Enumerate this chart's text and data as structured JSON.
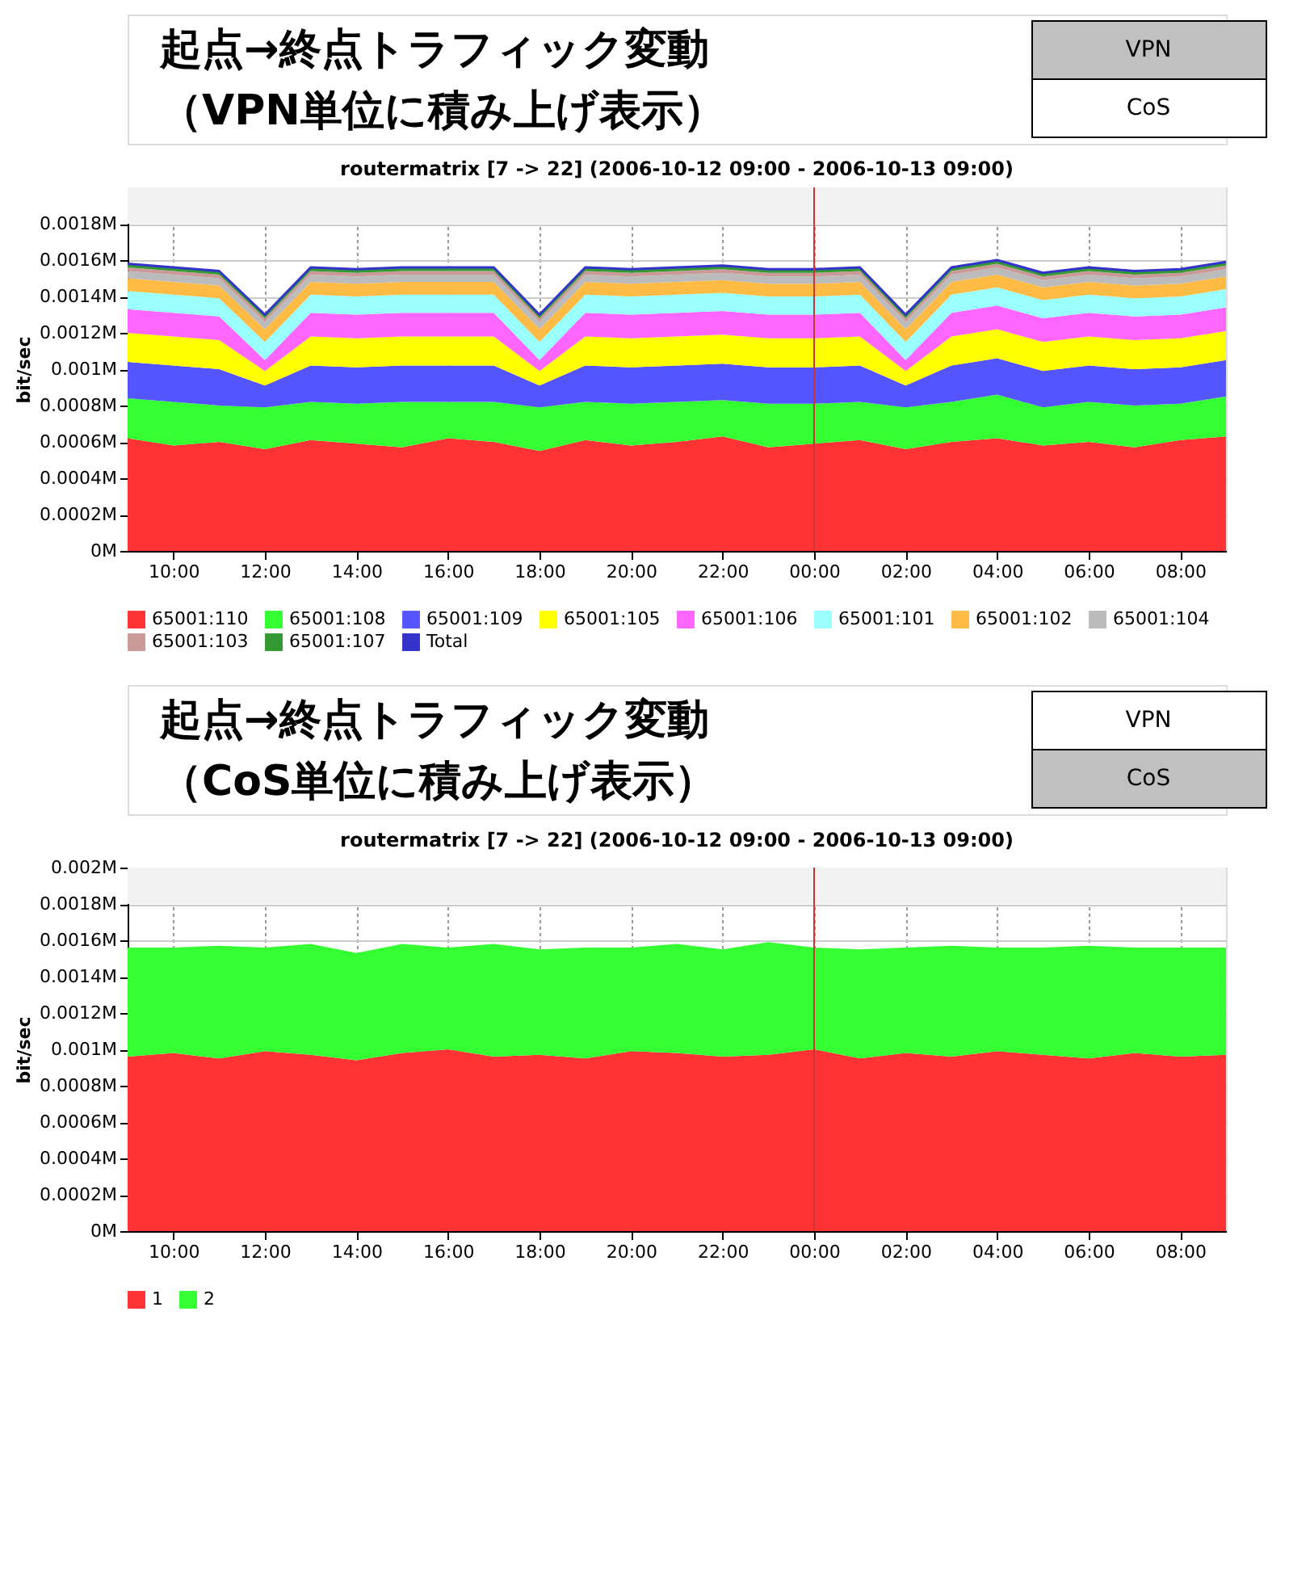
{
  "chart_data": [
    {
      "type": "area",
      "stacked": true,
      "title": "routermatrix [7 -> 22] (2006-10-12 09:00 - 2006-10-13 09:00)",
      "ylabel": "bit/sec",
      "annotations": [
        "起点→終点トラフィック変動",
        "（VPN単位に積み上げ表示）",
        "VPN",
        "CoS"
      ],
      "x": [
        "2006-10-12T09:00",
        "2006-10-12T10:00",
        "2006-10-12T11:00",
        "2006-10-12T12:00",
        "2006-10-12T13:00",
        "2006-10-12T14:00",
        "2006-10-12T15:00",
        "2006-10-12T16:00",
        "2006-10-12T17:00",
        "2006-10-12T18:00",
        "2006-10-12T19:00",
        "2006-10-12T20:00",
        "2006-10-12T21:00",
        "2006-10-12T22:00",
        "2006-10-12T23:00",
        "2006-10-13T00:00",
        "2006-10-13T01:00",
        "2006-10-13T02:00",
        "2006-10-13T03:00",
        "2006-10-13T04:00",
        "2006-10-13T05:00",
        "2006-10-13T06:00",
        "2006-10-13T07:00",
        "2006-10-13T08:00",
        "2006-10-13T09:00"
      ],
      "series": [
        {
          "name": "65001:110",
          "color": "#ff3333",
          "values": [
            0.00062,
            0.00058,
            0.0006,
            0.00056,
            0.00061,
            0.00059,
            0.00057,
            0.00062,
            0.0006,
            0.00055,
            0.00061,
            0.00058,
            0.0006,
            0.00063,
            0.00057,
            0.00059,
            0.00061,
            0.00056,
            0.0006,
            0.00062,
            0.00058,
            0.0006,
            0.00057,
            0.00061,
            0.00063
          ]
        },
        {
          "name": "65001:108",
          "color": "#33ff33",
          "values": [
            0.00022,
            0.00024,
            0.0002,
            0.00023,
            0.00021,
            0.00022,
            0.00025,
            0.0002,
            0.00022,
            0.00024,
            0.00021,
            0.00023,
            0.00022,
            0.0002,
            0.00024,
            0.00022,
            0.00021,
            0.00023,
            0.00022,
            0.00024,
            0.00021,
            0.00022,
            0.00023,
            0.0002,
            0.00022
          ]
        },
        {
          "name": "65001:109",
          "color": "#5555ff",
          "values": [
            0.0002,
            0.0002,
            0.0002,
            0.00012,
            0.0002,
            0.0002,
            0.0002,
            0.0002,
            0.0002,
            0.00012,
            0.0002,
            0.0002,
            0.0002,
            0.0002,
            0.0002,
            0.0002,
            0.0002,
            0.00012,
            0.0002,
            0.0002,
            0.0002,
            0.0002,
            0.0002,
            0.0002,
            0.0002
          ]
        },
        {
          "name": "65001:105",
          "color": "#ffff00",
          "values": [
            0.00016,
            0.00016,
            0.00016,
            8e-05,
            0.00016,
            0.00016,
            0.00016,
            0.00016,
            0.00016,
            8e-05,
            0.00016,
            0.00016,
            0.00016,
            0.00016,
            0.00016,
            0.00016,
            0.00016,
            8e-05,
            0.00016,
            0.00016,
            0.00016,
            0.00016,
            0.00016,
            0.00016,
            0.00016
          ]
        },
        {
          "name": "65001:106",
          "color": "#ff66ff",
          "values": [
            0.00013,
            0.00013,
            0.00013,
            6e-05,
            0.00013,
            0.00013,
            0.00013,
            0.00013,
            0.00013,
            6e-05,
            0.00013,
            0.00013,
            0.00013,
            0.00013,
            0.00013,
            0.00013,
            0.00013,
            6e-05,
            0.00013,
            0.00013,
            0.00013,
            0.00013,
            0.00013,
            0.00013,
            0.00013
          ]
        },
        {
          "name": "65001:101",
          "color": "#99ffff",
          "values": [
            0.0001,
            0.0001,
            0.0001,
            0.0001,
            0.0001,
            0.0001,
            0.0001,
            0.0001,
            0.0001,
            0.0001,
            0.0001,
            0.0001,
            0.0001,
            0.0001,
            0.0001,
            0.0001,
            0.0001,
            0.0001,
            0.0001,
            0.0001,
            0.0001,
            0.0001,
            0.0001,
            0.0001,
            0.0001
          ]
        },
        {
          "name": "65001:102",
          "color": "#ffbb44",
          "values": [
            7e-05,
            7e-05,
            7e-05,
            7e-05,
            7e-05,
            7e-05,
            7e-05,
            7e-05,
            7e-05,
            7e-05,
            7e-05,
            7e-05,
            7e-05,
            7e-05,
            7e-05,
            7e-05,
            7e-05,
            7e-05,
            7e-05,
            7e-05,
            7e-05,
            7e-05,
            7e-05,
            7e-05,
            7e-05
          ]
        },
        {
          "name": "65001:104",
          "color": "#bbbbbb",
          "values": [
            4e-05,
            4e-05,
            4e-05,
            4e-05,
            4e-05,
            4e-05,
            4e-05,
            4e-05,
            4e-05,
            4e-05,
            4e-05,
            4e-05,
            4e-05,
            4e-05,
            4e-05,
            4e-05,
            4e-05,
            4e-05,
            4e-05,
            4e-05,
            4e-05,
            4e-05,
            4e-05,
            4e-05,
            4e-05
          ]
        },
        {
          "name": "65001:103",
          "color": "#cc9999",
          "values": [
            2e-05,
            2e-05,
            2e-05,
            2e-05,
            2e-05,
            2e-05,
            2e-05,
            2e-05,
            2e-05,
            2e-05,
            2e-05,
            2e-05,
            2e-05,
            2e-05,
            2e-05,
            2e-05,
            2e-05,
            2e-05,
            2e-05,
            2e-05,
            2e-05,
            2e-05,
            2e-05,
            2e-05,
            2e-05
          ]
        },
        {
          "name": "65001:107",
          "color": "#339933",
          "values": [
            2e-05,
            2e-05,
            2e-05,
            2e-05,
            2e-05,
            2e-05,
            2e-05,
            2e-05,
            2e-05,
            2e-05,
            2e-05,
            2e-05,
            2e-05,
            2e-05,
            2e-05,
            2e-05,
            2e-05,
            2e-05,
            2e-05,
            2e-05,
            2e-05,
            2e-05,
            2e-05,
            2e-05,
            2e-05
          ]
        },
        {
          "name": "Total",
          "color": "#3333cc",
          "type": "line",
          "values": [
            0.00158,
            0.00156,
            0.00154,
            0.0013,
            0.00156,
            0.00155,
            0.00156,
            0.00156,
            0.00156,
            0.0013,
            0.00156,
            0.00155,
            0.00156,
            0.00157,
            0.00155,
            0.00155,
            0.00156,
            0.0013,
            0.00156,
            0.0016,
            0.00153,
            0.00156,
            0.00154,
            0.00155,
            0.00159
          ]
        }
      ],
      "ylim": [
        0,
        0.002
      ],
      "yticks": [
        {
          "value": 0,
          "label": "0M"
        },
        {
          "value": 0.0002,
          "label": "0.0002M"
        },
        {
          "value": 0.0004,
          "label": "0.0004M"
        },
        {
          "value": 0.0006,
          "label": "0.0006M"
        },
        {
          "value": 0.0008,
          "label": "0.0008M"
        },
        {
          "value": 0.001,
          "label": "0.001M"
        },
        {
          "value": 0.0012,
          "label": "0.0012M"
        },
        {
          "value": 0.0014,
          "label": "0.0014M"
        },
        {
          "value": 0.0016,
          "label": "0.0016M"
        },
        {
          "value": 0.0018,
          "label": "0.0018M"
        }
      ],
      "xlim": [
        "2006-10-12T09:00",
        "2006-10-13T09:00"
      ],
      "xticks": [
        {
          "value": "2006-10-12T10:00",
          "label": "10:00"
        },
        {
          "value": "2006-10-12T12:00",
          "label": "12:00"
        },
        {
          "value": "2006-10-12T14:00",
          "label": "14:00"
        },
        {
          "value": "2006-10-12T16:00",
          "label": "16:00"
        },
        {
          "value": "2006-10-12T18:00",
          "label": "18:00"
        },
        {
          "value": "2006-10-12T20:00",
          "label": "20:00"
        },
        {
          "value": "2006-10-12T22:00",
          "label": "22:00"
        },
        {
          "value": "2006-10-13T00:00",
          "label": "00:00"
        },
        {
          "value": "2006-10-13T02:00",
          "label": "02:00"
        },
        {
          "value": "2006-10-13T04:00",
          "label": "04:00"
        },
        {
          "value": "2006-10-13T06:00",
          "label": "06:00"
        },
        {
          "value": "2006-10-13T08:00",
          "label": "08:00"
        }
      ],
      "ref_lines": [
        {
          "axis": "x",
          "value": "2006-10-13T00:00",
          "color": "#cc3333"
        }
      ],
      "bands": [
        {
          "axis": "y",
          "from": 0.0018,
          "to": 0.002,
          "color": "#f2f2f2"
        }
      ],
      "grid": true,
      "legend": "bottom"
    },
    {
      "type": "area",
      "stacked": true,
      "title": "routermatrix [7 -> 22] (2006-10-12 09:00 - 2006-10-13 09:00)",
      "ylabel": "bit/sec",
      "annotations": [
        "起点→終点トラフィック変動",
        "（CoS単位に積み上げ表示）",
        "VPN",
        "CoS"
      ],
      "x": [
        "2006-10-12T09:00",
        "2006-10-12T10:00",
        "2006-10-12T11:00",
        "2006-10-12T12:00",
        "2006-10-12T13:00",
        "2006-10-12T14:00",
        "2006-10-12T15:00",
        "2006-10-12T16:00",
        "2006-10-12T17:00",
        "2006-10-12T18:00",
        "2006-10-12T19:00",
        "2006-10-12T20:00",
        "2006-10-12T21:00",
        "2006-10-12T22:00",
        "2006-10-12T23:00",
        "2006-10-13T00:00",
        "2006-10-13T01:00",
        "2006-10-13T02:00",
        "2006-10-13T03:00",
        "2006-10-13T04:00",
        "2006-10-13T05:00",
        "2006-10-13T06:00",
        "2006-10-13T07:00",
        "2006-10-13T08:00",
        "2006-10-13T09:00"
      ],
      "series": [
        {
          "name": "1",
          "color": "#ff3333",
          "values": [
            0.00096,
            0.00098,
            0.00095,
            0.00099,
            0.00097,
            0.00094,
            0.00098,
            0.001,
            0.00096,
            0.00097,
            0.00095,
            0.00099,
            0.00098,
            0.00096,
            0.00097,
            0.001,
            0.00095,
            0.00098,
            0.00096,
            0.00099,
            0.00097,
            0.00095,
            0.00098,
            0.00096,
            0.00097
          ]
        },
        {
          "name": "2",
          "color": "#33ff33",
          "values": [
            0.0006,
            0.00058,
            0.00062,
            0.00057,
            0.00061,
            0.00059,
            0.0006,
            0.00056,
            0.00062,
            0.00058,
            0.00061,
            0.00057,
            0.0006,
            0.00059,
            0.00062,
            0.00056,
            0.0006,
            0.00058,
            0.00061,
            0.00057,
            0.00059,
            0.00062,
            0.00058,
            0.0006,
            0.00059
          ]
        }
      ],
      "ylim": [
        0,
        0.002
      ],
      "yticks": [
        {
          "value": 0,
          "label": "0M"
        },
        {
          "value": 0.0002,
          "label": "0.0002M"
        },
        {
          "value": 0.0004,
          "label": "0.0004M"
        },
        {
          "value": 0.0006,
          "label": "0.0006M"
        },
        {
          "value": 0.0008,
          "label": "0.0008M"
        },
        {
          "value": 0.001,
          "label": "0.001M"
        },
        {
          "value": 0.0012,
          "label": "0.0012M"
        },
        {
          "value": 0.0014,
          "label": "0.0014M"
        },
        {
          "value": 0.0016,
          "label": "0.0016M"
        },
        {
          "value": 0.0018,
          "label": "0.0018M"
        },
        {
          "value": 0.002,
          "label": "0.002M"
        }
      ],
      "xlim": [
        "2006-10-12T09:00",
        "2006-10-13T09:00"
      ],
      "xticks": [
        {
          "value": "2006-10-12T10:00",
          "label": "10:00"
        },
        {
          "value": "2006-10-12T12:00",
          "label": "12:00"
        },
        {
          "value": "2006-10-12T14:00",
          "label": "14:00"
        },
        {
          "value": "2006-10-12T16:00",
          "label": "16:00"
        },
        {
          "value": "2006-10-12T18:00",
          "label": "18:00"
        },
        {
          "value": "2006-10-12T20:00",
          "label": "20:00"
        },
        {
          "value": "2006-10-12T22:00",
          "label": "22:00"
        },
        {
          "value": "2006-10-13T00:00",
          "label": "00:00"
        },
        {
          "value": "2006-10-13T02:00",
          "label": "02:00"
        },
        {
          "value": "2006-10-13T04:00",
          "label": "04:00"
        },
        {
          "value": "2006-10-13T06:00",
          "label": "06:00"
        },
        {
          "value": "2006-10-13T08:00",
          "label": "08:00"
        }
      ],
      "ref_lines": [
        {
          "axis": "x",
          "value": "2006-10-13T00:00",
          "color": "#cc3333"
        }
      ],
      "bands": [
        {
          "axis": "y",
          "from": 0.0018,
          "to": 0.002,
          "color": "#f2f2f2"
        }
      ],
      "grid": true,
      "legend": "bottom"
    }
  ]
}
